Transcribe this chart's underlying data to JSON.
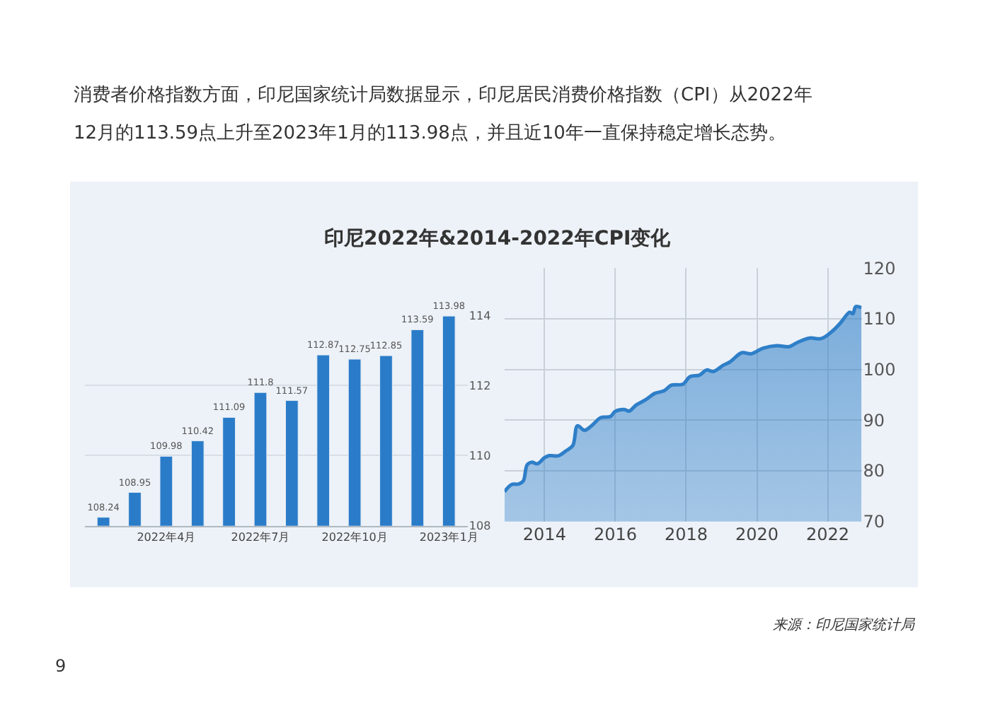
{
  "chart_data": [
    {
      "type": "bar",
      "title": "印尼2022年&2014-2022年CPI变化",
      "annotations": [
        "消费者价格指数方面，印尼国家统计局数据显示，印尼居民消费价格指数（CPI）从2022年",
        "12月的113.59点上升至2023年1月的113.98点，并且近10年一直保持稳定增长态势。",
        "来源：印尼国家统计局",
        "9"
      ],
      "categories": [
        null,
        null,
        "2022年4月",
        null,
        null,
        "2022年7月",
        null,
        null,
        "2022年10月",
        null,
        null,
        "2023年1月"
      ],
      "values": [
        108.24,
        108.95,
        109.98,
        110.42,
        111.09,
        111.8,
        111.57,
        112.87,
        112.75,
        112.85,
        113.59,
        113.98
      ],
      "color": "#2a7cc9",
      "data_labels": true,
      "ylim": [
        108,
        114
      ],
      "yticks": [
        108,
        110,
        112,
        114
      ],
      "grid": "y"
    },
    {
      "type": "area",
      "x": [
        2012.87,
        2013.07,
        2013.27,
        2013.4,
        2013.51,
        2013.64,
        2013.8,
        2014.0,
        2014.13,
        2014.4,
        2014.6,
        2014.8,
        2014.93,
        2015.13,
        2015.33,
        2015.59,
        2015.86,
        2015.99,
        2016.25,
        2016.39,
        2016.59,
        2016.85,
        2017.12,
        2017.38,
        2017.58,
        2017.91,
        2018.11,
        2018.38,
        2018.58,
        2018.77,
        2019.04,
        2019.24,
        2019.57,
        2019.84,
        2020.17,
        2020.56,
        2020.9,
        2021.16,
        2021.49,
        2021.82,
        2022.15,
        2022.36,
        2022.62,
        2022.71,
        2022.79,
        2022.95
      ],
      "values": [
        75.9,
        77.3,
        77.4,
        78.0,
        81.2,
        81.7,
        81.4,
        82.6,
        83.0,
        83.0,
        83.9,
        85.0,
        88.9,
        88.0,
        88.9,
        90.5,
        90.7,
        91.7,
        92.1,
        91.8,
        93.0,
        94.0,
        95.3,
        95.8,
        96.9,
        97.1,
        98.6,
        98.9,
        99.9,
        99.6,
        100.8,
        101.5,
        103.3,
        103.1,
        104.2,
        104.7,
        104.5,
        105.4,
        106.2,
        106.1,
        107.7,
        109.2,
        111.3,
        111.0,
        112.4,
        112.2
      ],
      "color": "#2f7fc8",
      "xlim": [
        2012.87,
        2022.96
      ],
      "xticks": [
        2014,
        2016,
        2018,
        2020,
        2022
      ],
      "ylim": [
        70,
        120
      ],
      "yticks": [
        70,
        80,
        90,
        100,
        110,
        120
      ],
      "grid": true
    }
  ]
}
